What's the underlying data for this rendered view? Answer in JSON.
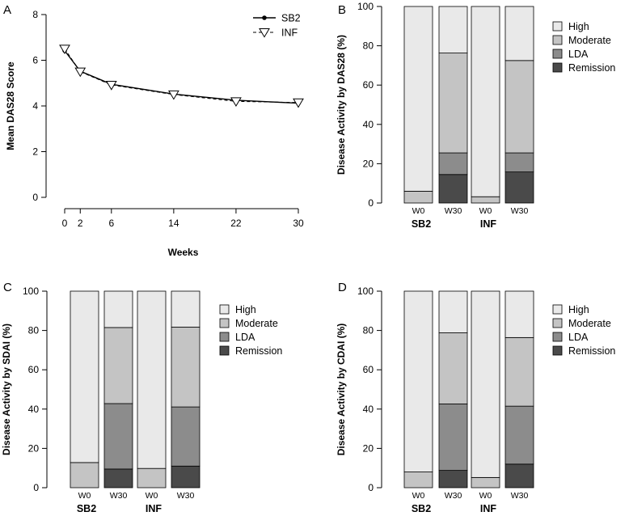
{
  "chart_data": [
    {
      "panel": "A",
      "type": "line",
      "title": "",
      "xlabel": "Weeks",
      "ylabel": "Mean DAS28 Score",
      "xlim": [
        0,
        30
      ],
      "ylim": [
        0,
        8
      ],
      "xticks": [
        0,
        2,
        6,
        14,
        22,
        30
      ],
      "yticks": [
        0,
        2,
        4,
        6,
        8
      ],
      "series": [
        {
          "name": "SB2",
          "marker": "filled-circle",
          "line": "solid",
          "x": [
            0,
            2,
            6,
            14,
            22,
            30
          ],
          "values": [
            6.42,
            5.52,
            4.95,
            4.52,
            4.25,
            4.12
          ]
        },
        {
          "name": "INF",
          "marker": "open-triangle-down",
          "line": "dashed",
          "x": [
            0,
            2,
            6,
            14,
            22,
            30
          ],
          "values": [
            6.5,
            5.5,
            4.92,
            4.5,
            4.2,
            4.15
          ]
        }
      ]
    },
    {
      "panel": "B",
      "type": "bar",
      "stacked": true,
      "ylabel": "Disease Activity by DAS28 (%)",
      "ylim": [
        0,
        100
      ],
      "yticks": [
        0,
        20,
        40,
        60,
        80,
        100
      ],
      "groups": [
        "SB2",
        "INF"
      ],
      "categories": [
        "W0",
        "W30",
        "W0",
        "W30"
      ],
      "series": [
        {
          "name": "Remission",
          "color": "#4a4a4a",
          "values": [
            0,
            14.5,
            0,
            15.8
          ]
        },
        {
          "name": "LDA",
          "color": "#8c8c8c",
          "values": [
            0,
            11.0,
            0,
            9.7
          ]
        },
        {
          "name": "Moderate",
          "color": "#c4c4c4",
          "values": [
            6.0,
            50.8,
            3.2,
            47.0
          ]
        },
        {
          "name": "High",
          "color": "#e9e9e9",
          "values": [
            94.0,
            23.7,
            96.8,
            27.5
          ]
        }
      ],
      "legend": [
        "High",
        "Moderate",
        "LDA",
        "Remission"
      ]
    },
    {
      "panel": "C",
      "type": "bar",
      "stacked": true,
      "ylabel": "Disease Activity by SDAI (%)",
      "ylim": [
        0,
        100
      ],
      "yticks": [
        0,
        20,
        40,
        60,
        80,
        100
      ],
      "groups": [
        "SB2",
        "INF"
      ],
      "categories": [
        "W0",
        "W30",
        "W0",
        "W30"
      ],
      "series": [
        {
          "name": "Remission",
          "color": "#4a4a4a",
          "values": [
            0,
            9.5,
            0,
            11.0
          ]
        },
        {
          "name": "LDA",
          "color": "#8c8c8c",
          "values": [
            0,
            33.3,
            0,
            30.1
          ]
        },
        {
          "name": "Moderate",
          "color": "#c4c4c4",
          "values": [
            12.8,
            38.7,
            9.8,
            40.6
          ]
        },
        {
          "name": "High",
          "color": "#e9e9e9",
          "values": [
            87.2,
            18.5,
            90.2,
            18.3
          ]
        }
      ],
      "legend": [
        "High",
        "Moderate",
        "LDA",
        "Remission"
      ]
    },
    {
      "panel": "D",
      "type": "bar",
      "stacked": true,
      "ylabel": "Disease Activity by CDAI (%)",
      "ylim": [
        0,
        100
      ],
      "yticks": [
        0,
        20,
        40,
        60,
        80,
        100
      ],
      "groups": [
        "SB2",
        "INF"
      ],
      "categories": [
        "W0",
        "W30",
        "W0",
        "W30"
      ],
      "series": [
        {
          "name": "Remission",
          "color": "#4a4a4a",
          "values": [
            0,
            8.8,
            0,
            12.0
          ]
        },
        {
          "name": "LDA",
          "color": "#8c8c8c",
          "values": [
            0,
            33.8,
            0,
            29.5
          ]
        },
        {
          "name": "Moderate",
          "color": "#c4c4c4",
          "values": [
            8.0,
            36.2,
            5.2,
            34.9
          ]
        },
        {
          "name": "High",
          "color": "#e9e9e9",
          "values": [
            92.0,
            21.2,
            94.8,
            23.6
          ]
        }
      ],
      "legend": [
        "High",
        "Moderate",
        "LDA",
        "Remission"
      ]
    }
  ]
}
